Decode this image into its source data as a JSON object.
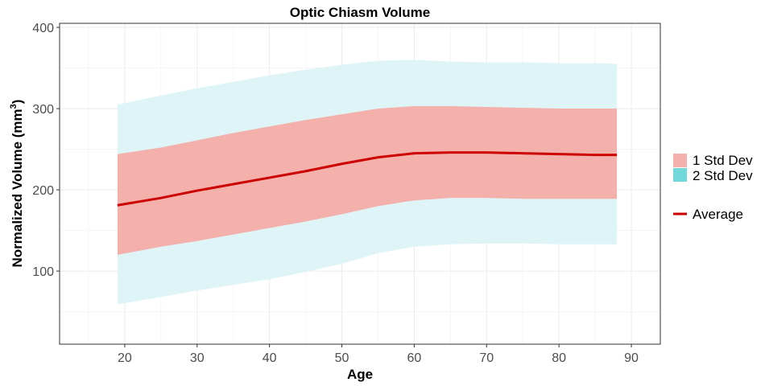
{
  "chart_data": {
    "type": "area",
    "title": "Optic Chiasm Volume",
    "xlabel": "Age",
    "ylabel_main": "Normalized Volume",
    "ylabel_unit": "(mm",
    "ylabel_sup": "3",
    "ylabel_close": ")",
    "xlim": [
      11,
      94
    ],
    "ylim": [
      10,
      405
    ],
    "x_ticks": [
      20,
      30,
      40,
      50,
      60,
      70,
      80,
      90
    ],
    "y_ticks": [
      100,
      200,
      300,
      400
    ],
    "grid": true,
    "legend_position": "right",
    "x": [
      19,
      25,
      30,
      35,
      40,
      45,
      50,
      55,
      60,
      65,
      70,
      75,
      80,
      85,
      88
    ],
    "series": [
      {
        "name": "Average",
        "kind": "line",
        "color": "#cc0000",
        "values": [
          181,
          190,
          199,
          207,
          215,
          223,
          232,
          240,
          245,
          246,
          246,
          245,
          244,
          243,
          243
        ]
      },
      {
        "name": "1 Std Dev",
        "kind": "band",
        "color": "#f4b0aa",
        "lower": [
          120,
          130,
          137,
          145,
          153,
          161,
          170,
          180,
          187,
          190,
          190,
          189,
          189,
          189,
          189
        ],
        "upper": [
          244,
          252,
          261,
          270,
          278,
          286,
          293,
          300,
          303,
          303,
          302,
          301,
          300,
          300,
          300
        ]
      },
      {
        "name": "2 Std Dev",
        "kind": "band",
        "color": "#dff4f7",
        "legend_color": "#72d8da",
        "lower": [
          59,
          68,
          76,
          83,
          90,
          99,
          109,
          122,
          130,
          133,
          134,
          134,
          133,
          133,
          133
        ],
        "upper": [
          305,
          316,
          325,
          333,
          341,
          348,
          354,
          359,
          360,
          358,
          357,
          357,
          356,
          356,
          355
        ]
      }
    ]
  },
  "legend": {
    "band1_label": "1 Std Dev",
    "band2_label": "2 Std Dev",
    "line_label": "Average"
  },
  "colors": {
    "panel_border": "#333333",
    "grid_major": "#ebebeb",
    "grid_minor": "#f5f5f5",
    "band1": "#f4b0aa",
    "band2": "#dff4f7",
    "band2_legend": "#72d8da",
    "average": "#cc0000"
  }
}
